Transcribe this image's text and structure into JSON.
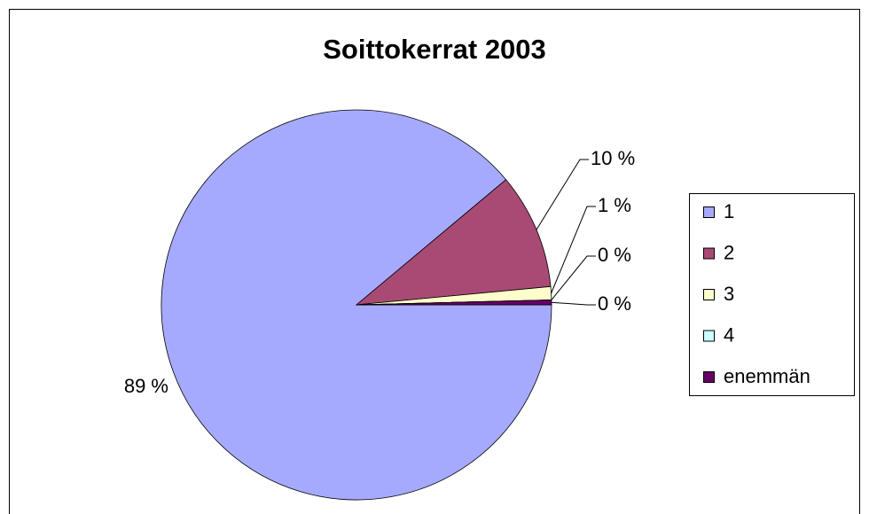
{
  "chart_data": {
    "type": "pie",
    "title": "Soittokerrat 2003",
    "categories": [
      "1",
      "2",
      "3",
      "4",
      "enemmän"
    ],
    "values": [
      88.9,
      9.6,
      1.1,
      0,
      0.4
    ],
    "value_labels": [
      "89 %",
      "10 %",
      "1 %",
      "0 %",
      "0 %"
    ],
    "colors": [
      "#a6aaff",
      "#a84a74",
      "#ffffcc",
      "#ccffff",
      "#660066"
    ],
    "legend": "right"
  }
}
